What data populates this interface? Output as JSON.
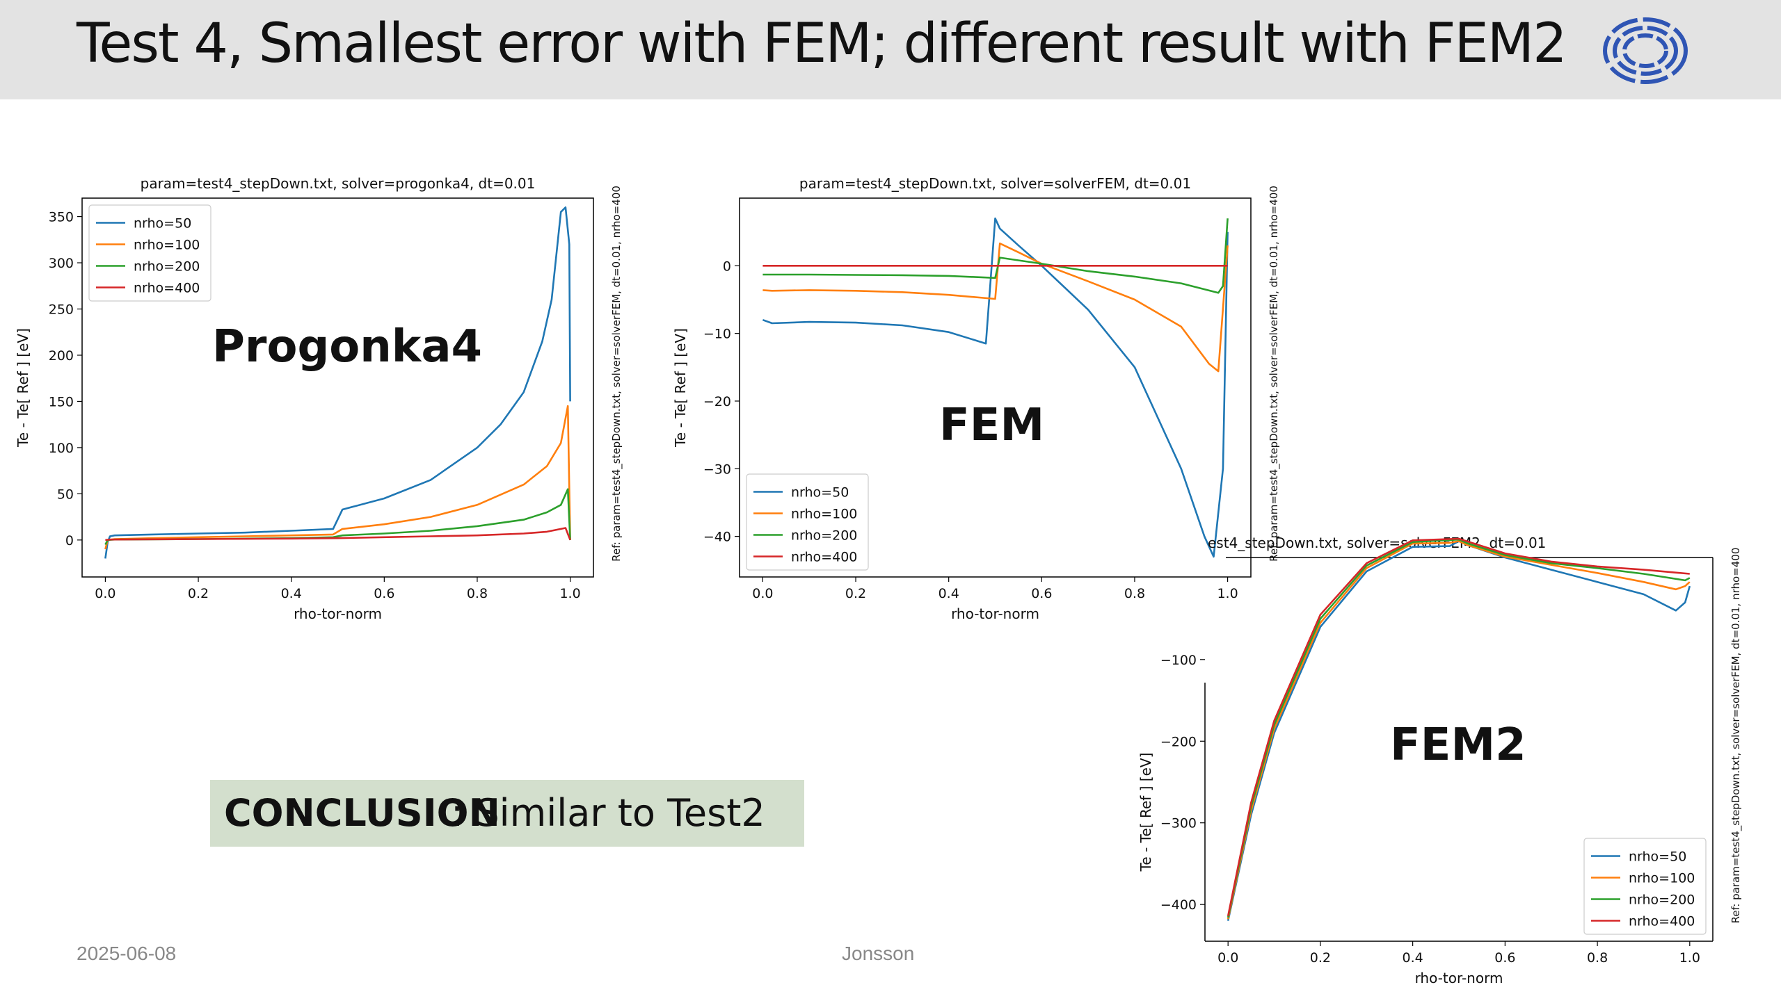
{
  "slide": {
    "title": "Test 4, Smallest error with FEM; different result with FEM2",
    "conclusion_bold": "CONCLUSION",
    "conclusion_rest": ": Similar to Test2",
    "footer_date": "2025-06-08",
    "footer_author": "Jonsson",
    "logo_icon": "tokamak-logo-icon",
    "colors": {
      "header_bg": "#e3e3e3",
      "conclusion_bg": "#d3dfcd",
      "logo": "#2f55b4"
    }
  },
  "chart_data": [
    {
      "type": "line",
      "title": "param=test4_stepDown.txt, solver=progonka4, dt=0.01",
      "overlay_label": "Progonka4",
      "xlabel": "rho-tor-norm",
      "ylabel": "Te - Te[ Ref ] [eV]",
      "side_text": "Ref: param=test4_stepDown.txt, solver=solverFEM, dt=0.01, nrho=400",
      "xlim": [
        -0.05,
        1.05
      ],
      "ylim": [
        -40,
        370
      ],
      "xticks": [
        0.0,
        0.2,
        0.4,
        0.6,
        0.8,
        1.0
      ],
      "xtick_labels": [
        "0.0",
        "0.2",
        "0.4",
        "0.6",
        "0.8",
        "1.0"
      ],
      "yticks": [
        0,
        50,
        100,
        150,
        200,
        250,
        300,
        350
      ],
      "ytick_labels": [
        "0",
        "50",
        "100",
        "150",
        "200",
        "250",
        "300",
        "350"
      ],
      "legend_position": "top-left",
      "series": [
        {
          "name": "nrho=50",
          "color": "#1f77b4",
          "x": [
            0.0,
            0.005,
            0.01,
            0.02,
            0.1,
            0.2,
            0.3,
            0.4,
            0.49,
            0.51,
            0.6,
            0.7,
            0.8,
            0.85,
            0.9,
            0.94,
            0.96,
            0.98,
            0.99,
            0.998,
            1.0
          ],
          "y": [
            -20,
            -2,
            4,
            5,
            6,
            7,
            8,
            10,
            12,
            33,
            45,
            65,
            100,
            125,
            160,
            215,
            260,
            355,
            360,
            320,
            150
          ]
        },
        {
          "name": "nrho=100",
          "color": "#ff7f0e",
          "x": [
            0.0,
            0.005,
            0.02,
            0.1,
            0.2,
            0.3,
            0.4,
            0.49,
            0.51,
            0.6,
            0.7,
            0.8,
            0.9,
            0.95,
            0.98,
            0.995,
            1.0
          ],
          "y": [
            -10,
            0,
            1,
            2,
            3,
            4,
            5,
            6,
            12,
            17,
            25,
            38,
            60,
            80,
            105,
            145,
            0
          ]
        },
        {
          "name": "nrho=200",
          "color": "#2ca02c",
          "x": [
            0.0,
            0.005,
            0.02,
            0.2,
            0.4,
            0.49,
            0.51,
            0.6,
            0.7,
            0.8,
            0.9,
            0.95,
            0.98,
            0.995,
            1.0
          ],
          "y": [
            -5,
            0,
            0.5,
            1,
            2,
            3,
            5,
            7,
            10,
            15,
            22,
            30,
            38,
            55,
            0
          ]
        },
        {
          "name": "nrho=400",
          "color": "#d62728",
          "x": [
            0.0,
            0.01,
            0.2,
            0.4,
            0.5,
            0.6,
            0.7,
            0.8,
            0.9,
            0.95,
            0.99,
            1.0
          ],
          "y": [
            0,
            0.5,
            1,
            1.5,
            2,
            3,
            4,
            5,
            7,
            9,
            13,
            0
          ]
        }
      ]
    },
    {
      "type": "line",
      "title": "param=test4_stepDown.txt, solver=solverFEM, dt=0.01",
      "overlay_label": "FEM",
      "xlabel": "rho-tor-norm",
      "ylabel": "Te - Te[ Ref ] [eV]",
      "side_text": "Ref: param=test4_stepDown.txt, solver=solverFEM, dt=0.01, nrho=400",
      "xlim": [
        -0.05,
        1.05
      ],
      "ylim": [
        -46,
        10
      ],
      "xticks": [
        0.0,
        0.2,
        0.4,
        0.6,
        0.8,
        1.0
      ],
      "xtick_labels": [
        "0.0",
        "0.2",
        "0.4",
        "0.6",
        "0.8",
        "1.0"
      ],
      "yticks": [
        0,
        -10,
        -20,
        -30,
        -40
      ],
      "ytick_labels": [
        "0",
        "−10",
        "−20",
        "−30",
        "−40"
      ],
      "legend_position": "bottom-left",
      "series": [
        {
          "name": "nrho=50",
          "color": "#1f77b4",
          "x": [
            0.0,
            0.02,
            0.1,
            0.2,
            0.3,
            0.4,
            0.48,
            0.5,
            0.51,
            0.55,
            0.6,
            0.7,
            0.8,
            0.9,
            0.95,
            0.97,
            0.99,
            1.0
          ],
          "y": [
            -8,
            -8.5,
            -8.3,
            -8.4,
            -8.8,
            -9.8,
            -11.5,
            7,
            5.5,
            3,
            0,
            -6.5,
            -15,
            -30,
            -40,
            -43,
            -30,
            5
          ]
        },
        {
          "name": "nrho=100",
          "color": "#ff7f0e",
          "x": [
            0.0,
            0.02,
            0.1,
            0.2,
            0.3,
            0.4,
            0.5,
            0.51,
            0.55,
            0.6,
            0.7,
            0.8,
            0.9,
            0.96,
            0.98,
            1.0
          ],
          "y": [
            -3.6,
            -3.7,
            -3.6,
            -3.7,
            -3.9,
            -4.3,
            -4.9,
            3.3,
            2,
            0.3,
            -2.3,
            -5,
            -9,
            -14.5,
            -15.6,
            3
          ]
        },
        {
          "name": "nrho=200",
          "color": "#2ca02c",
          "x": [
            0.0,
            0.1,
            0.2,
            0.3,
            0.4,
            0.5,
            0.51,
            0.6,
            0.7,
            0.8,
            0.9,
            0.98,
            0.99,
            1.0
          ],
          "y": [
            -1.3,
            -1.3,
            -1.35,
            -1.4,
            -1.5,
            -1.8,
            1.2,
            0.3,
            -0.8,
            -1.6,
            -2.6,
            -4,
            -3,
            7
          ]
        },
        {
          "name": "nrho=400",
          "color": "#d62728",
          "x": [
            0.0,
            1.0
          ],
          "y": [
            0,
            0
          ]
        }
      ]
    },
    {
      "type": "line",
      "title": "est4_stepDown.txt, solver=solverFEM2, dt=0.01",
      "overlay_label": "FEM2",
      "xlabel": "rho-tor-norm",
      "ylabel": "Te - Te[ Ref ] [eV]",
      "side_text": "Ref: param=test4_stepDown.txt, solver=solverFEM, dt=0.01, nrho=400",
      "xlim": [
        -0.05,
        1.05
      ],
      "ylim": [
        -445,
        25
      ],
      "xticks": [
        0.0,
        0.2,
        0.4,
        0.6,
        0.8,
        1.0
      ],
      "xtick_labels": [
        "0.0",
        "0.2",
        "0.4",
        "0.6",
        "0.8",
        "1.0"
      ],
      "yticks": [
        -100,
        -200,
        -300,
        -400
      ],
      "ytick_labels": [
        "−100",
        "−200",
        "−300",
        "−400"
      ],
      "legend_position": "bottom-right",
      "series": [
        {
          "name": "nrho=50",
          "color": "#1f77b4",
          "x": [
            0.0,
            0.05,
            0.1,
            0.2,
            0.3,
            0.4,
            0.48,
            0.5,
            0.52,
            0.6,
            0.7,
            0.8,
            0.9,
            0.97,
            0.99,
            1.0
          ],
          "y": [
            -420,
            -290,
            -190,
            -60,
            8,
            38,
            39,
            45,
            40,
            25,
            10,
            -5,
            -20,
            -40,
            -30,
            -10
          ]
        },
        {
          "name": "nrho=100",
          "color": "#ff7f0e",
          "x": [
            0.0,
            0.05,
            0.1,
            0.2,
            0.3,
            0.4,
            0.48,
            0.5,
            0.52,
            0.6,
            0.7,
            0.8,
            0.9,
            0.97,
            0.99,
            1.0
          ],
          "y": [
            -418,
            -285,
            -185,
            -55,
            12,
            42,
            43,
            45,
            40,
            26,
            16,
            6,
            -5,
            -14,
            -10,
            -5
          ]
        },
        {
          "name": "nrho=200",
          "color": "#2ca02c",
          "x": [
            0.0,
            0.05,
            0.1,
            0.2,
            0.3,
            0.4,
            0.5,
            0.52,
            0.6,
            0.7,
            0.8,
            0.9,
            0.99,
            1.0
          ],
          "y": [
            -416,
            -280,
            -180,
            -50,
            15,
            44,
            47,
            42,
            28,
            18,
            12,
            5,
            -3,
            0
          ]
        },
        {
          "name": "nrho=400",
          "color": "#d62728",
          "x": [
            0.0,
            0.05,
            0.1,
            0.2,
            0.3,
            0.4,
            0.5,
            0.6,
            0.7,
            0.8,
            0.9,
            1.0
          ],
          "y": [
            -414,
            -275,
            -175,
            -45,
            18,
            46,
            48,
            30,
            20,
            14,
            10,
            5
          ]
        }
      ]
    }
  ]
}
